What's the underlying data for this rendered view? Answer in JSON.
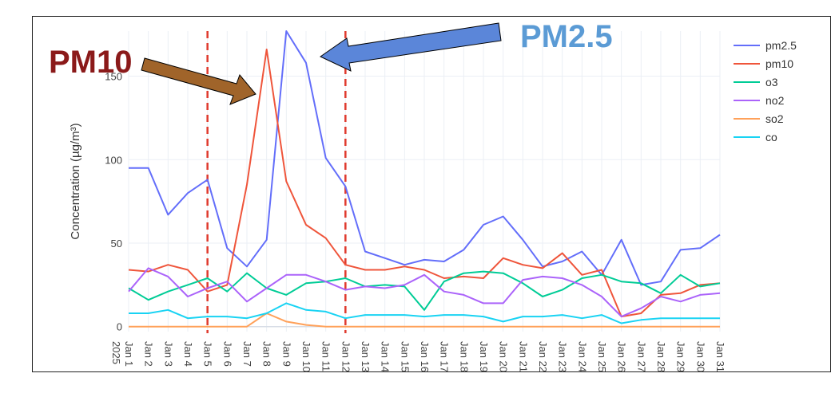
{
  "chart_data": {
    "type": "line",
    "title": "",
    "xlabel": "",
    "ylabel": "Concentration (µg/m³)",
    "ylim": [
      -3,
      177
    ],
    "yticks": [
      0,
      50,
      100,
      150
    ],
    "grid": true,
    "legend_position": "top-right",
    "year_label": "2025",
    "x": [
      "Jan 1",
      "Jan 2",
      "Jan 3",
      "Jan 4",
      "Jan 5",
      "Jan 6",
      "Jan 7",
      "Jan 8",
      "Jan 9",
      "Jan 10",
      "Jan 11",
      "Jan 12",
      "Jan 13",
      "Jan 14",
      "Jan 15",
      "Jan 16",
      "Jan 17",
      "Jan 18",
      "Jan 19",
      "Jan 20",
      "Jan 21",
      "Jan 22",
      "Jan 23",
      "Jan 24",
      "Jan 25",
      "Jan 26",
      "Jan 27",
      "Jan 28",
      "Jan 29",
      "Jan 30",
      "Jan 31"
    ],
    "series": [
      {
        "name": "pm2.5",
        "color": "#636efa",
        "values": [
          95,
          95,
          67,
          80,
          88,
          47,
          36,
          52,
          177,
          158,
          101,
          84,
          45,
          41,
          37,
          40,
          39,
          46,
          61,
          66,
          52,
          36,
          39,
          45,
          31,
          52,
          25,
          27,
          46,
          47,
          55
        ]
      },
      {
        "name": "pm10",
        "color": "#ef553b",
        "values": [
          34,
          33,
          37,
          34,
          21,
          25,
          85,
          166,
          87,
          61,
          53,
          37,
          34,
          34,
          36,
          34,
          29,
          30,
          29,
          41,
          37,
          35,
          44,
          31,
          34,
          6,
          8,
          19,
          20,
          25,
          26
        ]
      },
      {
        "name": "o3",
        "color": "#00cc96",
        "values": [
          23,
          16,
          21,
          25,
          29,
          21,
          32,
          23,
          19,
          26,
          27,
          29,
          24,
          25,
          24,
          10,
          27,
          32,
          33,
          32,
          26,
          18,
          22,
          29,
          31,
          27,
          26,
          20,
          31,
          24,
          26
        ]
      },
      {
        "name": "no2",
        "color": "#ab63fa",
        "values": [
          21,
          35,
          30,
          18,
          23,
          27,
          15,
          23,
          31,
          31,
          27,
          22,
          24,
          23,
          25,
          31,
          21,
          19,
          14,
          14,
          28,
          30,
          29,
          25,
          18,
          6,
          11,
          18,
          15,
          19,
          20
        ]
      },
      {
        "name": "so2",
        "color": "#ffa15a",
        "values": [
          0,
          0,
          0,
          0,
          0,
          0,
          0,
          8,
          3,
          1,
          0,
          0,
          0,
          0,
          0,
          0,
          0,
          0,
          0,
          0,
          0,
          0,
          0,
          0,
          0,
          0,
          0,
          0,
          0,
          0,
          0
        ]
      },
      {
        "name": "co",
        "color": "#19d3f3",
        "values": [
          8,
          8,
          10,
          5,
          6,
          6,
          5,
          8,
          14,
          10,
          9,
          5,
          7,
          7,
          7,
          6,
          7,
          7,
          6,
          3,
          6,
          6,
          7,
          5,
          7,
          2,
          4,
          5,
          5,
          5,
          5
        ]
      }
    ],
    "reference_lines": [
      {
        "x": "Jan 5",
        "color": "#e03a2e"
      },
      {
        "x": "Jan 12",
        "color": "#e03a2e"
      }
    ],
    "annotations": [
      {
        "text": "PM10",
        "color": "#8b1a1a",
        "arrow_color": "#a0642a"
      },
      {
        "text": "PM2.5",
        "color": "#5b9bd5",
        "arrow_color": "#5b86d9"
      }
    ]
  }
}
